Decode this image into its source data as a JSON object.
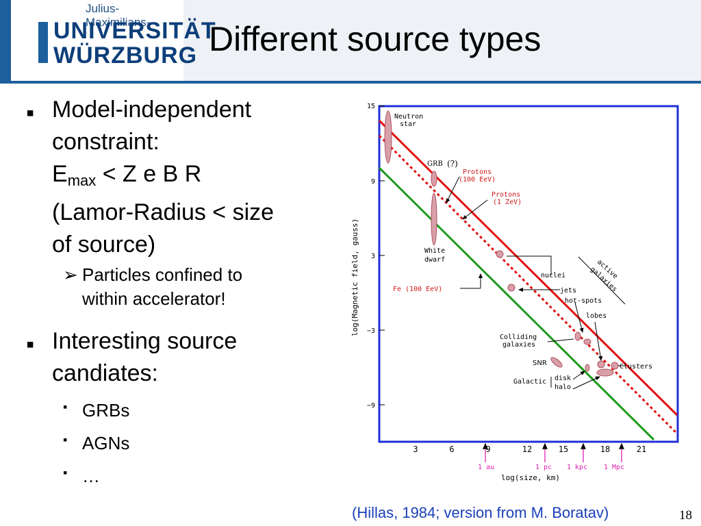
{
  "header": {
    "logo_small": "Julius-Maximilians-",
    "logo_line1": "UNIVERSITÄT",
    "logo_line2": "WÜRZBURG",
    "title": "Different source types"
  },
  "bullets": {
    "b1_line1": "Model-independent",
    "b1_line2": "constraint:",
    "b1_formula_e": "E",
    "b1_formula_sub": "max",
    "b1_formula_rest": " < Z e B R",
    "b1_line4": "(Lamor-Radius < size",
    "b1_line5": "of source)",
    "sub1_line1": "Particles confined to",
    "sub1_line2": "within accelerator!",
    "b2_line1": "Interesting source",
    "b2_line2": "candiates:",
    "sub2_items": [
      "GRBs",
      "AGNs",
      "…"
    ]
  },
  "figure": {
    "ylabel": "log(Magnetic field, gauss)",
    "xlabel": "log(size, km)",
    "yticks": [
      "15",
      "9",
      "3",
      "−3",
      "−9"
    ],
    "xticks": [
      "3",
      "6",
      "9",
      "12",
      "15",
      "18",
      "21"
    ],
    "scale_marks": [
      "1 au",
      "1 pc",
      "1 kpc",
      "1 Mpc"
    ],
    "labels": {
      "neutron_star": [
        "Neutron",
        "star"
      ],
      "grb": "GRB",
      "grb_q": "(?)",
      "protons_100eev": [
        "Protons",
        "(100 EeV)"
      ],
      "protons_1zev": [
        "Protons",
        "(1 ZeV)"
      ],
      "white_dwarf": [
        "White",
        "dwarf"
      ],
      "nuclei": "nuclei",
      "active_galaxies": [
        "active",
        "galaxies"
      ],
      "fe": "Fe (100 EeV)",
      "jets": "jets",
      "hot_spots": "hot-spots",
      "lobes": "lobes",
      "colliding": [
        "Colliding",
        "galaxies"
      ],
      "snr": "SNR",
      "clusters": "Clusters",
      "galactic": "Galactic",
      "disk": "disk",
      "halo": "halo"
    },
    "colors": {
      "frame": "#1f2fd8",
      "protons_1zev": "#e01010",
      "protons_100eev": "#e01010",
      "fe": "#1a9a1a",
      "label_red": "#d01818",
      "scale_marks": "#e020b0"
    }
  },
  "caption": "(Hillas, 1984; version from M. Boratav)",
  "page_number": "18"
}
